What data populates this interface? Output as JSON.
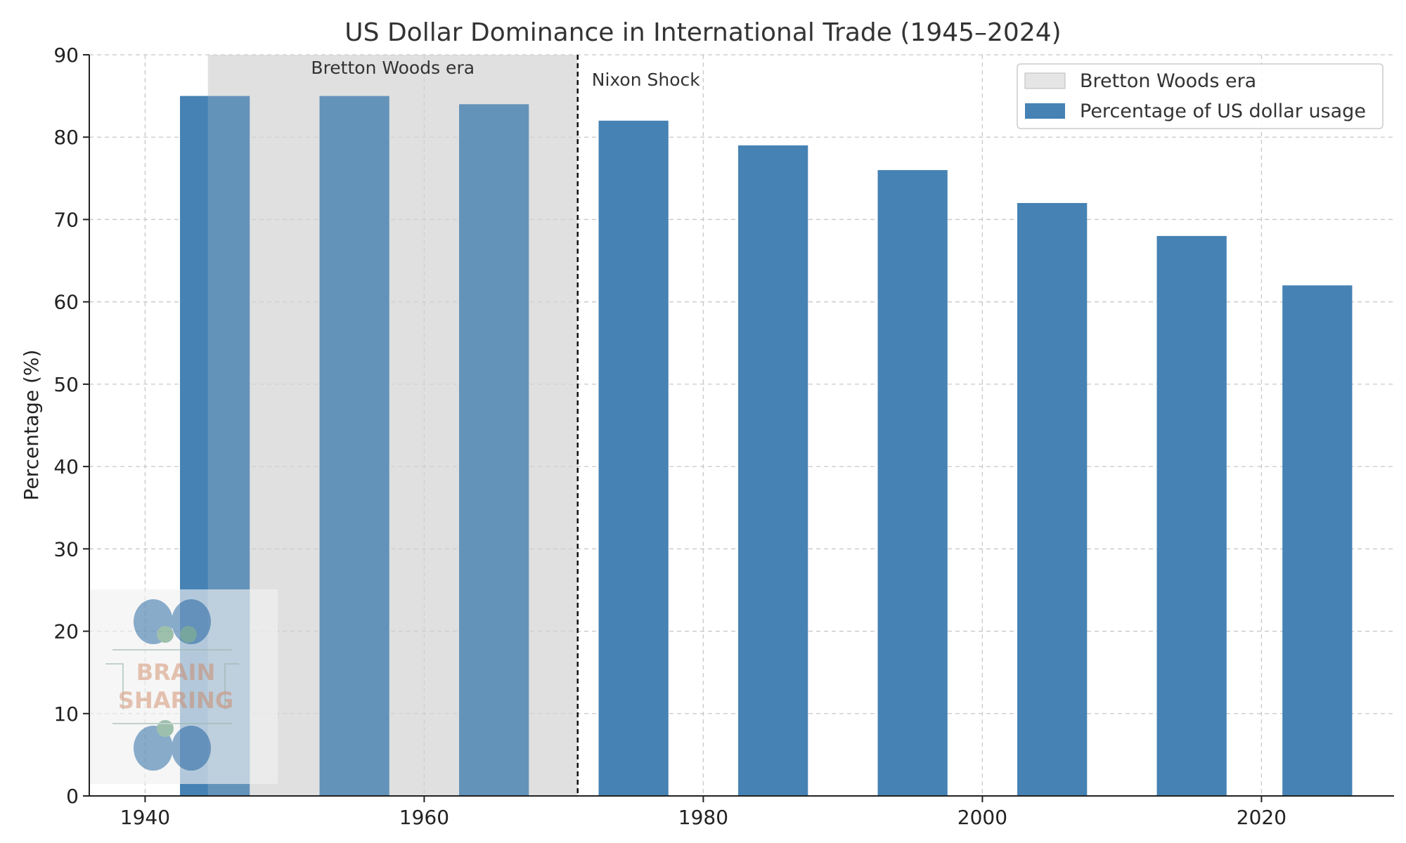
{
  "chart_data": {
    "type": "bar",
    "title": "US Dollar Dominance in International Trade (1945–2024)",
    "xlabel": "",
    "ylabel": "Percentage (%)",
    "xlim": [
      1936,
      2029.5
    ],
    "ylim": [
      0,
      90
    ],
    "x_ticks": [
      1940,
      1960,
      1980,
      2000,
      2020
    ],
    "y_ticks": [
      0,
      10,
      20,
      30,
      40,
      50,
      60,
      70,
      80,
      90
    ],
    "grid": true,
    "legend_position": "top-right",
    "bar_width_years": 5,
    "series": [
      {
        "name": "Percentage of US dollar usage",
        "color": "#4682b4",
        "x": [
          1945,
          1955,
          1965,
          1975,
          1985,
          1995,
          2005,
          2015,
          2024
        ],
        "values": [
          85,
          85,
          84,
          82,
          79,
          76,
          72,
          68,
          62
        ]
      }
    ],
    "shaded_region": {
      "name": "Bretton Woods era",
      "x_start": 1944.5,
      "x_end": 1971,
      "color": "#d3d3d3",
      "label": "Bretton Woods era"
    },
    "vline": {
      "x": 1971,
      "label": "Nixon Shock"
    }
  },
  "watermark": {
    "line1": "BRAIN",
    "line2": "SHARING",
    "icon": "brain-icon"
  }
}
